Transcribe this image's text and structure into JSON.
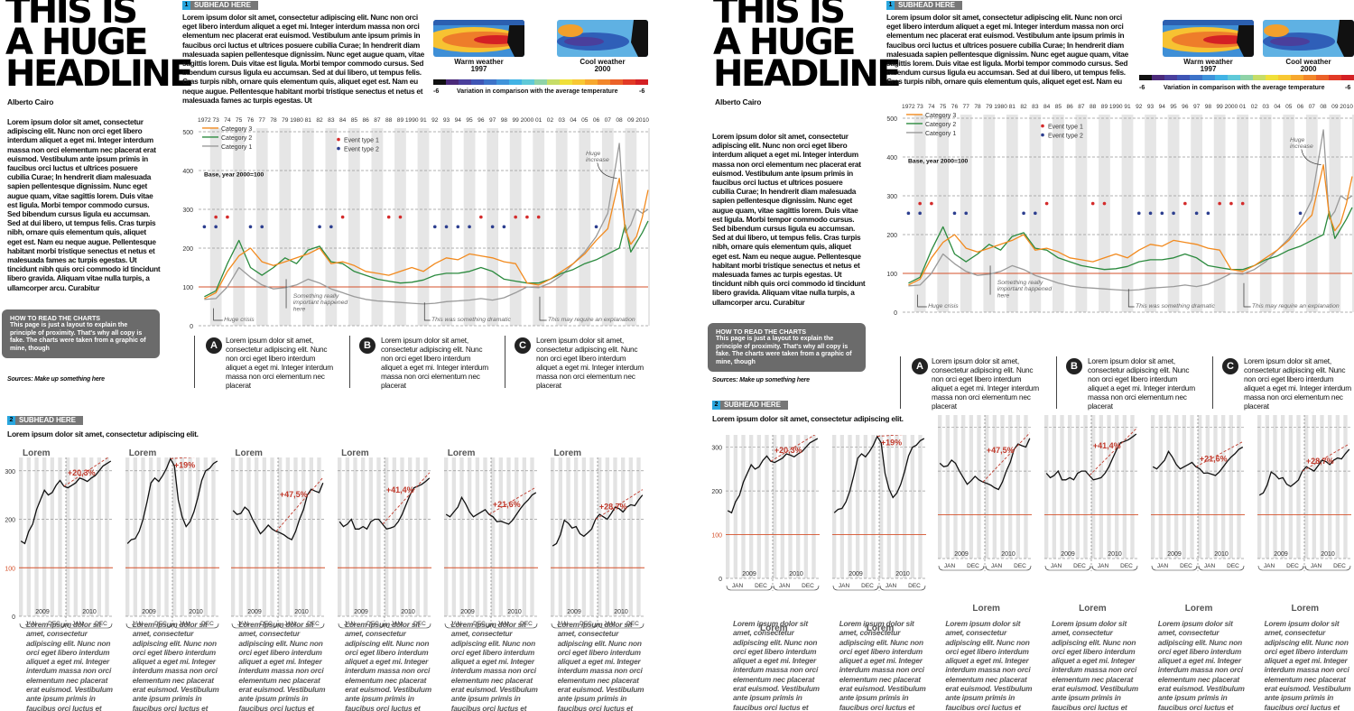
{
  "headline": "THIS IS\nA HUGE\nHEADLINE",
  "author": "Alberto Cairo",
  "body_text": "Lorem ipsum dolor sit amet, consectetur adipiscing elit. Nunc non orci eget libero interdum aliquet a eget mi. Integer interdum massa non orci elementum nec placerat erat euismod. Vestibulum ante ipsum primis in faucibus orci luctus et ultrices posuere cubilia Curae; In hendrerit diam malesuada sapien pellentesque dignissim. Nunc eget augue quam, vitae sagittis lorem. Duis vitae est ligula. Morbi tempor commodo cursus. Sed bibendum cursus ligula eu accumsan. Sed at dui libero, ut tempus felis. Cras turpis nibh, ornare quis elementum quis, aliquet eget est. Nam eu neque augue. Pellentesque habitant morbi tristique senectus et netus et malesuada fames ac turpis egestas. Ut tincidunt nibh quis orci commodo id tincidunt libero gravida. Aliquam vitae nulla turpis, a ullamcorper arcu. Curabitur",
  "howto": {
    "title": "HOW TO READ THE CHARTS",
    "text": "This page is just a layout to explain the principle of proximity. That's why all copy is fake. The charts were taken from a graphic of mine, though"
  },
  "sources": "Sources: Make up something here",
  "subhead1": {
    "num": "1",
    "label": "SUBHEAD HERE"
  },
  "subhead1_text": "Lorem ipsum dolor sit amet, consectetur adipiscing elit. Nunc non orci eget libero interdum aliquet a eget mi. Integer interdum massa non orci elementum nec placerat erat euismod. Vestibulum ante ipsum primis in faucibus orci luctus et ultrices posuere cubilia Curae; In hendrerit diam malesuada sapien pellentesque dignissim. Nunc eget augue quam, vitae sagittis lorem. Duis vitae est ligula. Morbi tempor commodo cursus. Sed bibendum cursus ligula eu accumsan. Sed at dui libero, ut tempus felis. Cras turpis nibh, ornare quis elementum quis, aliquet eget est. Nam eu neque augue. Pellentesque habitant morbi tristique senectus et netus et malesuada fames ac turpis egestas. Ut",
  "maps": {
    "warm_label": "Warm weather",
    "warm_year": "1997",
    "cool_label": "Cool weather",
    "cool_year": "2000",
    "scale_min": "-6",
    "scale_max": "-6",
    "scale_caption": "Variation in comparison with the average temperature",
    "scale_colors": [
      "#111111",
      "#4b2a7a",
      "#4a3f9c",
      "#3f55b5",
      "#3d73c9",
      "#3f93da",
      "#41b3e5",
      "#5fc9d8",
      "#8fd3a8",
      "#c6dd68",
      "#f0e03a",
      "#f8c833",
      "#f7a82e",
      "#f2862a",
      "#eb6128",
      "#e23a26",
      "#d42024"
    ]
  },
  "main_chart": {
    "year_labels": [
      "1972",
      "73",
      "74",
      "75",
      "76",
      "77",
      "78",
      "79",
      "1980",
      "81",
      "82",
      "83",
      "84",
      "85",
      "86",
      "87",
      "88",
      "89",
      "1990",
      "91",
      "92",
      "93",
      "94",
      "95",
      "96",
      "97",
      "98",
      "99",
      "2000",
      "01",
      "02",
      "03",
      "04",
      "05",
      "06",
      "07",
      "08",
      "09",
      "2010"
    ],
    "y_ticks": [
      "0",
      "100",
      "200",
      "300",
      "400",
      "500"
    ],
    "base_label": "Base, year 2000=100",
    "legend": {
      "cat1": "Category 1",
      "cat2": "Category 2",
      "cat3": "Category 3",
      "ev1": "Event type 1",
      "ev2": "Event type 2"
    },
    "annotations": {
      "huge_increase": "Huge\nincrease",
      "huge_crisis": "Huge crisis",
      "important": "Something really\nimportant happened\nhere",
      "dramatic": "This was something dramatic",
      "explanation": "This may require an explanation"
    }
  },
  "chart_data": [
    {
      "type": "line",
      "x_range": [
        1972,
        2011
      ],
      "ylim": [
        0,
        500
      ],
      "series": [
        {
          "name": "Category 1",
          "color": "#9a9a9a",
          "x": [
            1972,
            1973,
            1974,
            1975,
            1976,
            1977,
            1978,
            1979,
            1980,
            1981,
            1982,
            1983,
            1984,
            1985,
            1986,
            1987,
            1988,
            1989,
            1990,
            1991,
            1992,
            1993,
            1994,
            1995,
            1996,
            1997,
            1998,
            1999,
            2000,
            2001,
            2002,
            2003,
            2004,
            2005,
            2006,
            2007,
            2007.5,
            2008,
            2008.5,
            2009,
            2009.5,
            2010,
            2010.5
          ],
          "values": [
            68,
            70,
            100,
            150,
            125,
            105,
            95,
            98,
            105,
            120,
            110,
            95,
            85,
            75,
            68,
            64,
            62,
            60,
            58,
            56,
            58,
            62,
            64,
            66,
            70,
            66,
            72,
            85,
            100,
            98,
            110,
            130,
            160,
            190,
            230,
            290,
            380,
            470,
            240,
            260,
            300,
            290,
            300
          ]
        },
        {
          "name": "Category 2",
          "color": "#2b8a3e",
          "x": [
            1972,
            1973,
            1974,
            1975,
            1976,
            1977,
            1978,
            1979,
            1980,
            1981,
            1982,
            1983,
            1984,
            1985,
            1986,
            1987,
            1988,
            1989,
            1990,
            1991,
            1992,
            1993,
            1994,
            1995,
            1996,
            1997,
            1998,
            1999,
            2000,
            2001,
            2002,
            2003,
            2004,
            2005,
            2006,
            2007,
            2008,
            2008.5,
            2009,
            2009.5,
            2010,
            2010.5
          ],
          "values": [
            75,
            90,
            160,
            220,
            150,
            130,
            150,
            175,
            160,
            195,
            205,
            165,
            160,
            140,
            130,
            120,
            115,
            110,
            112,
            118,
            130,
            135,
            135,
            140,
            150,
            140,
            120,
            115,
            110,
            110,
            120,
            135,
            145,
            160,
            170,
            185,
            200,
            260,
            190,
            215,
            240,
            270
          ]
        },
        {
          "name": "Category 3",
          "color": "#f28a1e",
          "x": [
            1972,
            1973,
            1974,
            1975,
            1976,
            1977,
            1978,
            1979,
            1980,
            1981,
            1982,
            1983,
            1984,
            1985,
            1986,
            1987,
            1988,
            1989,
            1990,
            1991,
            1992,
            1993,
            1994,
            1995,
            1996,
            1997,
            1998,
            1999,
            2000,
            2001,
            2002,
            2003,
            2004,
            2005,
            2006,
            2007,
            2008,
            2008.5,
            2009,
            2009.5,
            2010,
            2010.5
          ],
          "values": [
            70,
            85,
            140,
            180,
            200,
            165,
            155,
            165,
            175,
            185,
            200,
            160,
            165,
            155,
            140,
            135,
            130,
            140,
            150,
            140,
            160,
            175,
            170,
            185,
            180,
            175,
            165,
            160,
            110,
            105,
            120,
            140,
            160,
            185,
            220,
            250,
            380,
            250,
            210,
            230,
            280,
            350
          ]
        }
      ],
      "events": [
        {
          "name": "Event type 1",
          "color": "#d42b2b",
          "x": [
            1973,
            1974,
            1984,
            1988,
            1989,
            1996,
            1999,
            2000,
            2001
          ],
          "y": 280
        },
        {
          "name": "Event type 2",
          "color": "#2c3e8f",
          "x": [
            1972,
            1973,
            1976,
            1977,
            1982,
            1983,
            1992,
            1993,
            1994,
            1995,
            1997,
            1998,
            2006
          ],
          "y": 255
        }
      ],
      "reference_line": 100
    },
    {
      "type": "line",
      "title": "Lorem",
      "ylim": [
        0,
        320
      ],
      "x_labels": [
        "JAN",
        "DEC",
        "JAN",
        "DEC"
      ],
      "year_labels": [
        "2009",
        "2010"
      ],
      "y_ticks": [
        "0",
        "100",
        "200",
        "300"
      ],
      "change_label": "+20,3%",
      "values": [
        155,
        150,
        175,
        190,
        220,
        240,
        260,
        250,
        255,
        270,
        280,
        268,
        265,
        270,
        275,
        285,
        282,
        278,
        285,
        290,
        300,
        310,
        315,
        320
      ]
    },
    {
      "type": "line",
      "title": "Lorem",
      "ylim": [
        0,
        320
      ],
      "x_labels": [
        "JAN",
        "DEC",
        "JAN",
        "DEC"
      ],
      "year_labels": [
        "2009",
        "2010"
      ],
      "change_label": "+19%",
      "values": [
        150,
        158,
        160,
        175,
        200,
        235,
        275,
        285,
        278,
        290,
        305,
        325,
        310,
        240,
        205,
        185,
        195,
        215,
        245,
        280,
        300,
        305,
        315,
        320
      ]
    },
    {
      "type": "line",
      "title": "Lorem",
      "ylim": [
        0,
        320
      ],
      "x_labels": [
        "JAN",
        "DEC",
        "JAN",
        "DEC"
      ],
      "year_labels": [
        "2009",
        "2010"
      ],
      "change_label": "+47,5%",
      "values": [
        218,
        210,
        212,
        225,
        218,
        200,
        185,
        170,
        178,
        188,
        180,
        175,
        172,
        168,
        162,
        158,
        175,
        200,
        220,
        250,
        262,
        258,
        255,
        275
      ]
    },
    {
      "type": "line",
      "title": "Lorem",
      "ylim": [
        0,
        320
      ],
      "x_labels": [
        "JAN",
        "DEC",
        "JAN",
        "DEC"
      ],
      "year_labels": [
        "2009",
        "2010"
      ],
      "change_label": "+41,4%",
      "values": [
        195,
        185,
        190,
        200,
        180,
        180,
        185,
        180,
        195,
        200,
        200,
        190,
        180,
        182,
        185,
        195,
        210,
        230,
        250,
        265,
        268,
        272,
        278,
        285
      ]
    },
    {
      "type": "line",
      "title": "Lorem",
      "ylim": [
        0,
        320
      ],
      "x_labels": [
        "JAN",
        "DEC",
        "JAN",
        "DEC"
      ],
      "year_labels": [
        "2009",
        "2010"
      ],
      "change_label": "+21,6%",
      "values": [
        210,
        205,
        215,
        225,
        245,
        232,
        215,
        205,
        210,
        215,
        220,
        210,
        205,
        195,
        196,
        193,
        190,
        198,
        210,
        222,
        232,
        240,
        250,
        255
      ]
    },
    {
      "type": "line",
      "title": "Lorem",
      "ylim": [
        0,
        320
      ],
      "x_labels": [
        "JAN",
        "DEC",
        "JAN",
        "DEC"
      ],
      "year_labels": [
        "2009",
        "2010"
      ],
      "change_label": "+28,7%",
      "values": [
        145,
        150,
        168,
        198,
        192,
        182,
        185,
        170,
        165,
        172,
        180,
        200,
        210,
        205,
        200,
        212,
        225,
        222,
        215,
        225,
        230,
        228,
        240,
        250
      ]
    }
  ],
  "abc": [
    {
      "letter": "A",
      "text": "Lorem ipsum dolor sit amet, consectetur adipiscing elit. Nunc non orci eget libero interdum aliquet a eget mi. Integer interdum massa non orci elementum nec placerat"
    },
    {
      "letter": "B",
      "text": "Lorem ipsum dolor sit amet, consectetur adipiscing elit. Nunc non orci eget libero interdum aliquet a eget mi. Integer interdum massa non orci elementum nec placerat"
    },
    {
      "letter": "C",
      "text": "Lorem ipsum dolor sit amet, consectetur adipiscing elit. Nunc non orci eget libero interdum aliquet a eget mi. Integer interdum massa non orci elementum nec placerat"
    }
  ],
  "subhead2": {
    "num": "2",
    "label": "SUBHEAD HERE"
  },
  "subhead2_text": "Lorem ipsum dolor sit amet, consectetur adipiscing elit.",
  "small_desc": "Lorem ipsum dolor sit amet, consectetur adipiscing elit. Nunc non orci eget libero interdum aliquet a eget mi. Integer interdum massa non orci elementum nec placerat erat euismod. Vestibulum ante ipsum primis in faucibus orci luctus et"
}
